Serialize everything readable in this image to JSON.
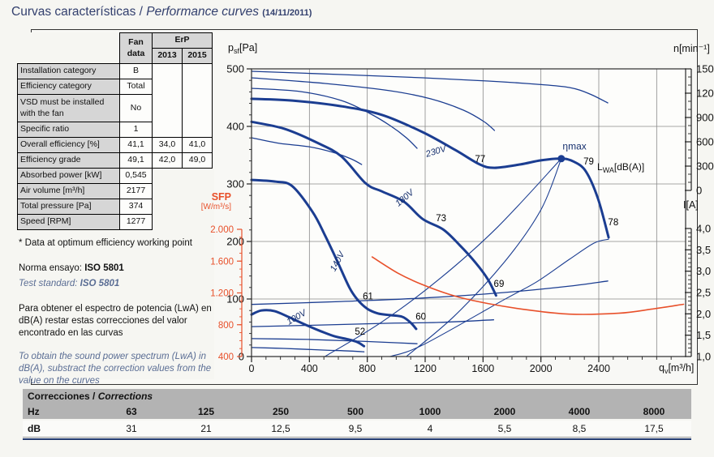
{
  "title": {
    "main": "Curvas características /",
    "italic": "Performance curves",
    "date": "(14/11/2011)"
  },
  "fan_table": {
    "headers": {
      "fan_line1": "Fan",
      "fan_line2": "data",
      "erp": "ErP",
      "y2013": "2013",
      "y2015": "2015"
    },
    "rows": [
      {
        "label": "Installation category",
        "fan": "B"
      },
      {
        "label": "Efficiency category",
        "fan": "Total"
      },
      {
        "label": "VSD must be installed with the fan",
        "fan": "No"
      },
      {
        "label": "Specific ratio",
        "fan": "1"
      },
      {
        "label": "Overall efficiency [%]",
        "fan": "41,1",
        "erp2013": "34,0",
        "erp2015": "41,0"
      },
      {
        "label": "Efficiency grade",
        "fan": "49,1",
        "erp2013": "42,0",
        "erp2015": "49,0"
      },
      {
        "label": "Absorbed power [kW]",
        "fan": "0,545"
      },
      {
        "label": "Air volume [m³/h]",
        "fan": "2177"
      },
      {
        "label": "Total pressure [Pa]",
        "fan": "374"
      },
      {
        "label": "Speed [RPM]",
        "fan": "1277"
      }
    ]
  },
  "notes": {
    "optimum": "* Data at optimum efficiency working point",
    "norma_label": "Norma ensayo:",
    "norma_value": "ISO 5801",
    "test_label": "Test standard:",
    "test_value": "ISO 5801",
    "spanish": "Para obtener el espectro de potencia (LwA) en dB(A) restar estas correcciones del valor encontrado en las curvas",
    "english": "To obtain the sound power spectrum (LwA) in dB(A), substract the correction values from the value on the curves"
  },
  "corrections": {
    "title_es": "Correcciones /",
    "title_en": "Corrections",
    "row1_label": "Hz",
    "row2_label": "dB",
    "hz": [
      "63",
      "125",
      "250",
      "500",
      "1000",
      "2000",
      "4000",
      "8000"
    ],
    "db": [
      "31",
      "21",
      "12,5",
      "9,5",
      "4",
      "5,5",
      "8,5",
      "17,5"
    ]
  },
  "chart_data": {
    "type": "line",
    "colors": {
      "curve_blue": "#1b3d91",
      "sfp_red": "#e8502a",
      "grid": "#8a8a8a",
      "frame": "#3a3a3a"
    },
    "x_axis": {
      "label_pre": "q",
      "label_sub": "v",
      "label_unit": "[m³/h]",
      "min": 0,
      "max": 3000,
      "ticks": [
        0,
        400,
        800,
        1200,
        1600,
        2000,
        2400
      ],
      "minor_step": 100
    },
    "pressure_axis": {
      "label_pre": "p",
      "label_sub": "sf",
      "label_unit": "[Pa]",
      "min": 0,
      "max": 500,
      "tick_step": 100,
      "minor_step": 20
    },
    "speed_axis": {
      "label": "n[min⁻¹]",
      "min": 0,
      "max": 1500,
      "tick_step": 300,
      "minor_step": 100
    },
    "current_axis": {
      "label": "I[A]",
      "min": 1.0,
      "max": 4.0,
      "tick_step": 0.5,
      "minor_step": 0.1,
      "tick_labels": [
        "1,0",
        "1,5",
        "2,0",
        "2,5",
        "3,0",
        "3,5",
        "4,0"
      ]
    },
    "sfp_axis": {
      "label": "SFP",
      "unit": "[W/m³/s]",
      "min": 400,
      "max": 2000,
      "tick_step": 400,
      "minor_step": 100,
      "tick_labels": [
        "400",
        "800",
        "1.200",
        "1.600",
        "2.000"
      ]
    },
    "lwa_label": {
      "pre": "L",
      "sub": "WA",
      "post": "[dB(A)]"
    },
    "eta_max_point": {
      "q": 2141,
      "p": 344
    },
    "series": [
      {
        "name": "pressure-230V",
        "scale": "pressure",
        "width": 3,
        "points": [
          [
            0,
            448
          ],
          [
            282,
            445
          ],
          [
            620,
            435
          ],
          [
            901,
            420
          ],
          [
            1183,
            390
          ],
          [
            1408,
            359
          ],
          [
            1577,
            334
          ],
          [
            1679,
            328
          ],
          [
            1859,
            334
          ],
          [
            2000,
            341
          ],
          [
            2141,
            344
          ],
          [
            2225,
            339
          ],
          [
            2310,
            322
          ],
          [
            2394,
            275
          ],
          [
            2468,
            207
          ]
        ]
      },
      {
        "name": "pressure-180V",
        "scale": "pressure",
        "width": 3,
        "points": [
          [
            0,
            408
          ],
          [
            225,
            396
          ],
          [
            451,
            372
          ],
          [
            620,
            348
          ],
          [
            789,
            301
          ],
          [
            901,
            287
          ],
          [
            1054,
            269
          ],
          [
            1183,
            239
          ],
          [
            1324,
            221
          ],
          [
            1437,
            194
          ],
          [
            1549,
            163
          ],
          [
            1634,
            134
          ],
          [
            1690,
            106
          ]
        ]
      },
      {
        "name": "pressure-140V",
        "scale": "pressure",
        "width": 3,
        "points": [
          [
            0,
            307
          ],
          [
            169,
            304
          ],
          [
            282,
            296
          ],
          [
            423,
            251
          ],
          [
            507,
            211
          ],
          [
            592,
            166
          ],
          [
            676,
            120
          ],
          [
            732,
            99
          ],
          [
            800,
            83
          ],
          [
            873,
            75
          ],
          [
            958,
            72
          ],
          [
            1042,
            69
          ],
          [
            1099,
            59
          ],
          [
            1138,
            48
          ]
        ]
      },
      {
        "name": "pressure-100V",
        "scale": "pressure",
        "width": 3,
        "points": [
          [
            0,
            73
          ],
          [
            68,
            80
          ],
          [
            158,
            79
          ],
          [
            254,
            69
          ],
          [
            366,
            56
          ],
          [
            479,
            44
          ],
          [
            575,
            35
          ],
          [
            665,
            30
          ],
          [
            732,
            25
          ],
          [
            777,
            18
          ]
        ]
      },
      {
        "name": "speed-230V",
        "scale": "speed",
        "width": 1.3,
        "points": [
          [
            0,
            1470
          ],
          [
            620,
            1430
          ],
          [
            1183,
            1390
          ],
          [
            1634,
            1350
          ],
          [
            1972,
            1310
          ],
          [
            2197,
            1270
          ],
          [
            2338,
            1190
          ],
          [
            2462,
            1080
          ]
        ]
      },
      {
        "name": "speed-180V",
        "scale": "speed",
        "width": 1.3,
        "points": [
          [
            0,
            1390
          ],
          [
            507,
            1320
          ],
          [
            958,
            1230
          ],
          [
            1239,
            1130
          ],
          [
            1465,
            990
          ],
          [
            1606,
            850
          ],
          [
            1679,
            740
          ]
        ]
      },
      {
        "name": "speed-140V",
        "scale": "speed",
        "width": 1.3,
        "points": [
          [
            0,
            1260
          ],
          [
            338,
            1220
          ],
          [
            620,
            1110
          ],
          [
            817,
            950
          ],
          [
            958,
            800
          ],
          [
            1070,
            650
          ],
          [
            1144,
            520
          ]
        ]
      },
      {
        "name": "speed-100V",
        "scale": "speed",
        "width": 1.3,
        "points": [
          [
            0,
            650
          ],
          [
            197,
            580
          ],
          [
            394,
            540
          ],
          [
            563,
            470
          ],
          [
            687,
            390
          ],
          [
            761,
            320
          ]
        ]
      },
      {
        "name": "current-230V",
        "scale": "current",
        "width": 1.3,
        "points": [
          [
            0,
            2.22
          ],
          [
            620,
            2.29
          ],
          [
            1183,
            2.37
          ],
          [
            1747,
            2.5
          ],
          [
            2197,
            2.65
          ],
          [
            2462,
            2.77
          ]
        ]
      },
      {
        "name": "current-180V",
        "scale": "current",
        "width": 1.3,
        "points": [
          [
            0,
            1.7
          ],
          [
            507,
            1.74
          ],
          [
            958,
            1.78
          ],
          [
            1296,
            1.8
          ],
          [
            1673,
            1.86
          ]
        ]
      },
      {
        "name": "current-140V",
        "scale": "current",
        "width": 1.3,
        "points": [
          [
            0,
            1.42
          ],
          [
            394,
            1.4
          ],
          [
            732,
            1.36
          ],
          [
            1014,
            1.32
          ],
          [
            1144,
            1.3
          ]
        ]
      },
      {
        "name": "current-100V",
        "scale": "current",
        "width": 1.3,
        "points": [
          [
            0,
            1.21
          ],
          [
            225,
            1.19
          ],
          [
            507,
            1.15
          ],
          [
            676,
            1.13
          ],
          [
            777,
            1.11
          ]
        ]
      },
      {
        "name": "eta-locus-1",
        "scale": "pressure",
        "width": 1.1,
        "points": [
          [
            507,
            0
          ],
          [
            900,
            60
          ],
          [
            1300,
            135
          ],
          [
            1700,
            225
          ],
          [
            2141,
            344
          ]
        ]
      },
      {
        "name": "eta-locus-2",
        "scale": "pressure",
        "width": 1.1,
        "points": [
          [
            1070,
            0
          ],
          [
            1400,
            70
          ],
          [
            1750,
            165
          ],
          [
            2000,
            255
          ],
          [
            2141,
            344
          ]
        ]
      },
      {
        "name": "load-line",
        "scale": "pressure",
        "width": 1.1,
        "points": [
          [
            958,
            0
          ],
          [
            1183,
            20
          ],
          [
            1747,
            99
          ],
          [
            1972,
            130
          ],
          [
            2197,
            169
          ],
          [
            2366,
            197
          ],
          [
            2468,
            204
          ]
        ]
      },
      {
        "name": "sfp-curve",
        "scale": "sfp",
        "width": 1.6,
        "color": "#e8502a",
        "points": [
          [
            834,
            1652
          ],
          [
            1014,
            1447
          ],
          [
            1183,
            1303
          ],
          [
            1408,
            1159
          ],
          [
            1634,
            1067
          ],
          [
            1915,
            985
          ],
          [
            2197,
            933
          ],
          [
            2535,
            944
          ],
          [
            2761,
            995
          ],
          [
            2986,
            1057
          ]
        ]
      }
    ],
    "annotations": [
      {
        "text": "230V",
        "q": 1280,
        "p": 352,
        "rot": -17,
        "cls": "volt"
      },
      {
        "text": "180V",
        "q": 1070,
        "p": 272,
        "rot": -40,
        "cls": "volt"
      },
      {
        "text": "140V",
        "q": 610,
        "p": 163,
        "rot": -62,
        "cls": "volt"
      },
      {
        "text": "100V",
        "q": 320,
        "p": 64,
        "rot": -30,
        "cls": "volt"
      },
      {
        "text": "77",
        "q": 1580,
        "p": 338,
        "rot": 0,
        "cls": "lwa"
      },
      {
        "text": "79",
        "q": 2330,
        "p": 334,
        "rot": 0,
        "cls": "lwa"
      },
      {
        "text": "78",
        "q": 2500,
        "p": 228,
        "rot": 0,
        "cls": "lwa"
      },
      {
        "text": "73",
        "q": 1310,
        "p": 235,
        "rot": 0,
        "cls": "lwa"
      },
      {
        "text": "69",
        "q": 1710,
        "p": 121,
        "rot": 0,
        "cls": "lwa"
      },
      {
        "text": "61",
        "q": 805,
        "p": 99,
        "rot": 0,
        "cls": "lwa"
      },
      {
        "text": "60",
        "q": 1170,
        "p": 64,
        "rot": 0,
        "cls": "lwa"
      },
      {
        "text": "52",
        "q": 750,
        "p": 38,
        "rot": 0,
        "cls": "lwa"
      },
      {
        "text": "ηmax",
        "q": 2150,
        "p": 360,
        "rot": 0,
        "cls": "eta"
      }
    ]
  }
}
